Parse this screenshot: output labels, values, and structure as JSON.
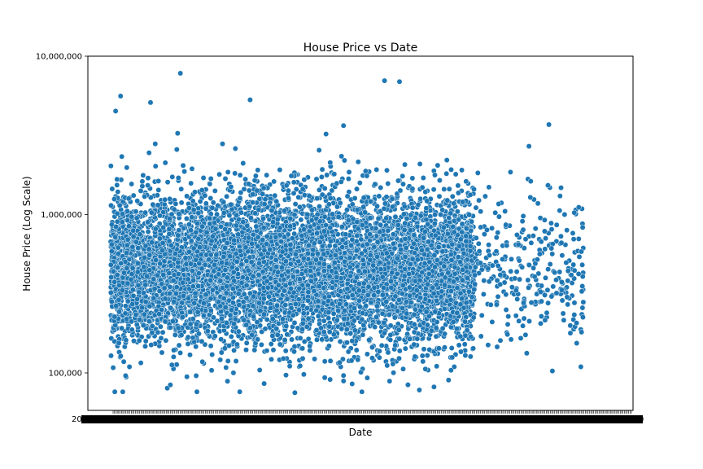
{
  "chart_data": {
    "type": "scatter",
    "title": "House Price vs Date",
    "xlabel": "Date",
    "ylabel": "House Price (Log Scale)",
    "yscale": "log",
    "ylim": [
      58000,
      10000000
    ],
    "y_ticks": [
      100000,
      1000000,
      10000000
    ],
    "y_tick_labels": [
      "100,000",
      "1,000,000",
      "10,000,000"
    ],
    "x_tick_labels_note": "overlapping date labels (unreadable)",
    "x_tick_count": 372,
    "point_color": "#1f77b4",
    "dense_region": {
      "x_fraction_range": [
        0.0,
        0.73
      ],
      "price_center": 450000,
      "note": "approx. 7500 points"
    },
    "sparse_region": {
      "x_fraction_range": [
        0.73,
        0.95
      ],
      "price_center": 450000,
      "note": "approx. 300 points"
    },
    "notable_points": [
      {
        "x_fraction": 0.14,
        "price": 7800000
      },
      {
        "x_fraction": 0.55,
        "price": 7000000
      },
      {
        "x_fraction": 0.58,
        "price": 6900000
      },
      {
        "x_fraction": 0.28,
        "price": 5300000
      },
      {
        "x_fraction": 0.02,
        "price": 5600000
      },
      {
        "x_fraction": 0.08,
        "price": 5100000
      },
      {
        "x_fraction": 0.01,
        "price": 4500000
      },
      {
        "x_fraction": 0.88,
        "price": 3700000
      },
      {
        "x_fraction": 0.84,
        "price": 2700000
      },
      {
        "x_fraction": 0.37,
        "price": 75000
      },
      {
        "x_fraction": 0.62,
        "price": 78000
      },
      {
        "x_fraction": 0.03,
        "price": 96000
      },
      {
        "x_fraction": 0.12,
        "price": 84000
      }
    ]
  }
}
